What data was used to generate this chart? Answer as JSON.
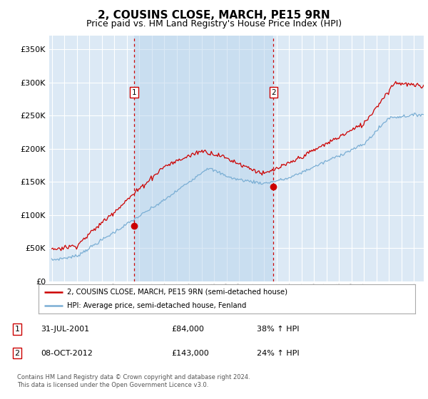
{
  "title": "2, COUSINS CLOSE, MARCH, PE15 9RN",
  "subtitle": "Price paid vs. HM Land Registry's House Price Index (HPI)",
  "title_fontsize": 11,
  "subtitle_fontsize": 9,
  "background_color": "#ffffff",
  "plot_bg_color": "#dce9f5",
  "plot_bg_color2": "#cfe0f0",
  "grid_color": "#ffffff",
  "legend_label_red": "2, COUSINS CLOSE, MARCH, PE15 9RN (semi-detached house)",
  "legend_label_blue": "HPI: Average price, semi-detached house, Fenland",
  "red_color": "#cc0000",
  "blue_color": "#7aaed4",
  "vline_color": "#cc0000",
  "marker1_x": 2001.58,
  "marker2_x": 2012.77,
  "marker1_price": 84000,
  "marker2_price": 143000,
  "footer": "Contains HM Land Registry data © Crown copyright and database right 2024.\nThis data is licensed under the Open Government Licence v3.0.",
  "ylim": [
    0,
    370000
  ],
  "yticks": [
    0,
    50000,
    100000,
    150000,
    200000,
    250000,
    300000,
    350000
  ],
  "xlim": [
    1994.8,
    2024.8
  ],
  "xticks": [
    1995,
    1996,
    1997,
    1998,
    1999,
    2000,
    2001,
    2002,
    2003,
    2004,
    2005,
    2006,
    2007,
    2008,
    2009,
    2010,
    2011,
    2012,
    2013,
    2014,
    2015,
    2016,
    2017,
    2018,
    2019,
    2020,
    2021,
    2022,
    2023,
    2024
  ]
}
